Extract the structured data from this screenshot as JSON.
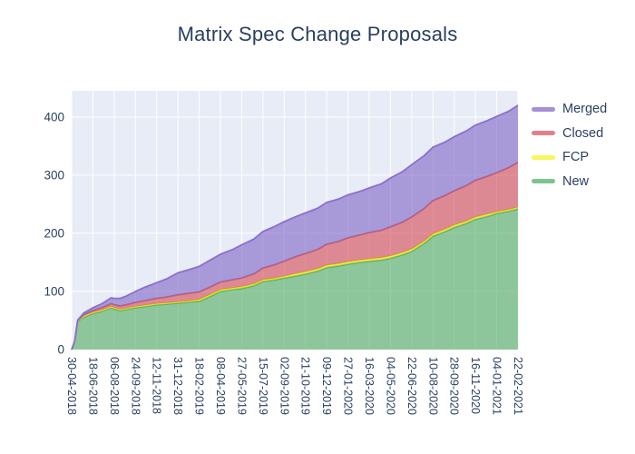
{
  "chart_data": {
    "type": "area",
    "stacked": true,
    "title": "Matrix Spec Change Proposals",
    "plot_background": "#e8ecf6",
    "grid_color": "#ffffff",
    "text_color": "#2a3f5f",
    "x_axis": {
      "tick_labels": [
        "30-04-2018",
        "18-06-2018",
        "06-08-2018",
        "24-09-2018",
        "12-11-2018",
        "31-12-2018",
        "18-02-2019",
        "08-04-2019",
        "27-05-2019",
        "15-07-2019",
        "02-09-2019",
        "21-10-2019",
        "09-12-2019",
        "27-01-2020",
        "16-03-2020",
        "04-05-2020",
        "22-06-2020",
        "10-08-2020",
        "28-09-2020",
        "16-11-2020",
        "04-01-2021",
        "22-02-2021"
      ],
      "tick_interval_days": 49,
      "span_days": 1029,
      "tick_angle_deg": 90
    },
    "y_axis": {
      "tick_values": [
        0,
        100,
        200,
        300,
        400
      ],
      "tick_labels": [
        "0",
        "100",
        "200",
        "300",
        "400"
      ],
      "range": [
        0,
        445
      ]
    },
    "legend": {
      "position": "right",
      "entries": [
        {
          "label": "Merged",
          "color": "#a78fd8"
        },
        {
          "label": "Closed",
          "color": "#e0808b"
        },
        {
          "label": "FCP",
          "color": "#f6f65e"
        },
        {
          "label": "New",
          "color": "#7cc48d"
        }
      ]
    },
    "x_days": [
      0,
      7,
      14,
      28,
      49,
      70,
      91,
      98,
      112,
      126,
      147,
      168,
      196,
      217,
      245,
      273,
      294,
      315,
      343,
      371,
      392,
      420,
      441,
      469,
      490,
      518,
      539,
      567,
      588,
      616,
      637,
      665,
      686,
      714,
      735,
      763,
      784,
      812,
      833,
      861,
      882,
      910,
      931,
      959,
      980,
      1008,
      1029
    ],
    "series": [
      {
        "name": "New",
        "fill": "rgba(78,174,93,0.6)",
        "line": "#56ab69",
        "values": [
          0,
          14,
          48,
          56,
          62,
          66,
          72,
          70,
          67,
          69,
          72,
          74,
          77,
          78,
          80,
          82,
          83,
          90,
          100,
          103,
          105,
          110,
          117,
          120,
          123,
          127,
          130,
          135,
          141,
          144,
          147,
          150,
          152,
          154,
          157,
          163,
          169,
          182,
          195,
          203,
          210,
          217,
          224,
          229,
          234,
          238,
          242
        ]
      },
      {
        "name": "FCP",
        "fill": "rgba(245,240,20,0.6)",
        "line": "#e3e32b",
        "values": [
          0,
          0,
          1,
          2,
          2,
          2,
          2,
          2,
          2,
          2,
          2,
          2,
          2,
          2,
          2,
          2,
          3,
          3,
          3,
          3,
          3,
          3,
          3,
          3,
          3,
          4,
          4,
          4,
          4,
          4,
          4,
          4,
          4,
          4,
          4,
          4,
          4,
          4,
          4,
          4,
          4,
          4,
          4,
          4,
          3,
          3,
          3
        ]
      },
      {
        "name": "Closed",
        "fill": "rgba(213,72,83,0.6)",
        "line": "#cd5f6e",
        "values": [
          0,
          0,
          1,
          2,
          3,
          4,
          5,
          5,
          6,
          6,
          7,
          8,
          9,
          10,
          12,
          13,
          13,
          13,
          13,
          14,
          15,
          17,
          20,
          23,
          26,
          29,
          31,
          33,
          36,
          38,
          41,
          43,
          45,
          47,
          50,
          52,
          55,
          56,
          57,
          58,
          59,
          61,
          63,
          65,
          67,
          72,
          77
        ]
      },
      {
        "name": "Merged",
        "fill": "rgba(125,99,196,0.6)",
        "line": "#8a6fd0",
        "values": [
          0,
          0,
          1,
          3,
          5,
          7,
          10,
          11,
          13,
          15,
          19,
          23,
          27,
          31,
          38,
          41,
          44,
          46,
          48,
          52,
          57,
          60,
          63,
          66,
          68,
          69,
          70,
          71,
          72,
          73,
          74,
          75,
          77,
          80,
          84,
          87,
          90,
          91,
          92,
          92,
          93,
          94,
          95,
          96,
          97,
          97,
          98
        ]
      }
    ],
    "stacking_order_bottom_to_top": [
      "New",
      "FCP",
      "Closed",
      "Merged"
    ],
    "totals_at_last_point": 420
  }
}
